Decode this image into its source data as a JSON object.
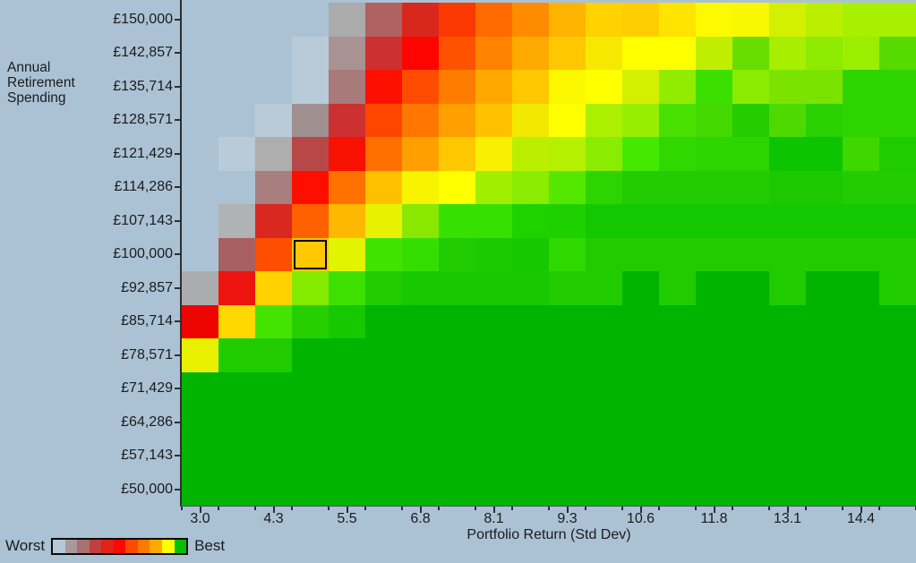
{
  "chart_data": {
    "type": "heatmap",
    "y_axis": {
      "title": "Annual\nRetirement\nSpending",
      "labels": [
        "£150,000",
        "£142,857",
        "£135,714",
        "£128,571",
        "£121,429",
        "£114,286",
        "£107,143",
        "£100,000",
        "£92,857",
        "£85,714",
        "£78,571",
        "£71,429",
        "£64,286",
        "£57,143",
        "£50,000"
      ]
    },
    "x_axis": {
      "title": "Portfolio Return (Std Dev)",
      "labels": [
        "3.0",
        "4.3",
        "5.5",
        "6.8",
        "8.1",
        "9.3",
        "10.6",
        "11.8",
        "13.1",
        "14.4"
      ]
    },
    "legend": {
      "worst": "Worst",
      "best": "Best",
      "colors": [
        "#b4c8d8",
        "#a89a9a",
        "#a87070",
        "#c04040",
        "#e02418",
        "#ff0800",
        "#ff4800",
        "#ff7800",
        "#ffaa00",
        "#ffff00",
        "#00c000"
      ]
    },
    "selected_cell": {
      "row_index": 7,
      "col_index": 3
    },
    "cell_colors": [
      [
        "",
        "",
        "",
        "",
        "#ababab",
        "#b06262",
        "#d8281e",
        "#fb3800",
        "#ff6a00",
        "#ff8c00",
        "#ffb400",
        "#ffd200",
        "#ffce00",
        "#ffe400",
        "#fdfa00",
        "#f8f800",
        "#d2f000",
        "#baf000",
        "#a6f000",
        "#a6f000"
      ],
      [
        "",
        "",
        "",
        "#b9cbd9",
        "#a89292",
        "#cc3030",
        "#fe0400",
        "#ff5200",
        "#ff8200",
        "#ffaa00",
        "#ffc800",
        "#f6e800",
        "#ffff00",
        "#ffff00",
        "#c0ee00",
        "#68de00",
        "#a8ee00",
        "#8eea00",
        "#9cee00",
        "#56da00"
      ],
      [
        "",
        "",
        "",
        "#b9cbd9",
        "#a87a7a",
        "#fe1000",
        "#ff4c00",
        "#ff7c00",
        "#ffa800",
        "#ffc800",
        "#fcf800",
        "#ffff00",
        "#d2f000",
        "#92ec00",
        "#3ce000",
        "#8aec00",
        "#7ae400",
        "#7ae400",
        "#2ed400",
        "#2ed400"
      ],
      [
        "",
        "",
        "#b9cbd9",
        "#a09090",
        "#cc3030",
        "#fe4600",
        "#ff7600",
        "#ffa000",
        "#ffc000",
        "#f2e800",
        "#ffff00",
        "#aaf000",
        "#98ee00",
        "#48e000",
        "#42d800",
        "#24cc00",
        "#4eda00",
        "#2ad000",
        "#2ed400",
        "#2ed400"
      ],
      [
        "",
        "#b9cbd9",
        "#aeaeae",
        "#b84848",
        "#f81000",
        "#ff7000",
        "#ffa000",
        "#ffc800",
        "#f8f000",
        "#baf000",
        "#b4f000",
        "#8aec00",
        "#44e800",
        "#30d800",
        "#2ed400",
        "#2ed400",
        "#0cc400",
        "#0cc400",
        "#3ed800",
        "#1ecc00"
      ],
      [
        "",
        "",
        "#a87e7e",
        "#fe0e00",
        "#ff7200",
        "#ffc000",
        "#f8f400",
        "#ffff00",
        "#a2ee00",
        "#8aec00",
        "#54e800",
        "#2ed400",
        "#22cc00",
        "#22cc00",
        "#22cc00",
        "#22cc00",
        "#1cc800",
        "#1cc800",
        "#22cc00",
        "#22cc00"
      ],
      [
        "",
        "#b0b2b4",
        "#d82820",
        "#ff6000",
        "#ffb800",
        "#e6f200",
        "#8ae800",
        "#38e000",
        "#38e000",
        "#1ed200",
        "#1ed000",
        "#14c800",
        "#14c800",
        "#14c800",
        "#14c800",
        "#14c800",
        "#14c800",
        "#14c800",
        "#14c800",
        "#14c800"
      ],
      [
        "",
        "#a86060",
        "#fe4e00",
        "#ffc800",
        "#e2f400",
        "#40e200",
        "#36de00",
        "#20cc00",
        "#1acb00",
        "#16c800",
        "#2ed800",
        "#20cc00",
        "#20cc00",
        "#20cc00",
        "#20cc00",
        "#20cc00",
        "#20cc00",
        "#20cc00",
        "#20cc00",
        "#20cc00"
      ],
      [
        "#aaacae",
        "#ee1410",
        "#ffd200",
        "#84ea00",
        "#3ee000",
        "#20cc00",
        "#18c800",
        "#18c800",
        "#18c800",
        "#18c800",
        "#20cc00",
        "#20cc00",
        "#00b400",
        "#20cc00",
        "#00b400",
        "#00b400",
        "#20cc00",
        "#00b400",
        "#00b400",
        "#20cc00"
      ],
      [
        "#ee0400",
        "#ffd800",
        "#44e400",
        "#26d000",
        "#16c800",
        "#00b400",
        "#00b400",
        "#00b400",
        "#00b400",
        "#00b400",
        "#00b400",
        "#00b400",
        "#00b400",
        "#00b400",
        "#00b400",
        "#00b400",
        "#00b400",
        "#00b400",
        "#00b400",
        "#00b400"
      ],
      [
        "#e8f000",
        "#20cc00",
        "#20cc00",
        "#00b400",
        "#00b400",
        "#00b400",
        "#00b400",
        "#00b400",
        "#00b400",
        "#00b400",
        "#00b400",
        "#00b400",
        "#00b400",
        "#00b400",
        "#00b400",
        "#00b400",
        "#00b400",
        "#00b400",
        "#00b400",
        "#00b400"
      ],
      [
        "#00b400",
        "#00b400",
        "#00b400",
        "#00b400",
        "#00b400",
        "#00b400",
        "#00b400",
        "#00b400",
        "#00b400",
        "#00b400",
        "#00b400",
        "#00b400",
        "#00b400",
        "#00b400",
        "#00b400",
        "#00b400",
        "#00b400",
        "#00b400",
        "#00b400",
        "#00b400"
      ],
      [
        "#00b400",
        "#00b400",
        "#00b400",
        "#00b400",
        "#00b400",
        "#00b400",
        "#00b400",
        "#00b400",
        "#00b400",
        "#00b400",
        "#00b400",
        "#00b400",
        "#00b400",
        "#00b400",
        "#00b400",
        "#00b400",
        "#00b400",
        "#00b400",
        "#00b400",
        "#00b400"
      ],
      [
        "#00b400",
        "#00b400",
        "#00b400",
        "#00b400",
        "#00b400",
        "#00b400",
        "#00b400",
        "#00b400",
        "#00b400",
        "#00b400",
        "#00b400",
        "#00b400",
        "#00b400",
        "#00b400",
        "#00b400",
        "#00b400",
        "#00b400",
        "#00b400",
        "#00b400",
        "#00b400"
      ],
      [
        "#00b400",
        "#00b400",
        "#00b400",
        "#00b400",
        "#00b400",
        "#00b400",
        "#00b400",
        "#00b400",
        "#00b400",
        "#00b400",
        "#00b400",
        "#00b400",
        "#00b400",
        "#00b400",
        "#00b400",
        "#00b400",
        "#00b400",
        "#00b400",
        "#00b400",
        "#00b400"
      ]
    ]
  },
  "colors": {
    "background": "#abc2d5",
    "axis": "#2e2e2e",
    "selected_border": "#000000"
  }
}
